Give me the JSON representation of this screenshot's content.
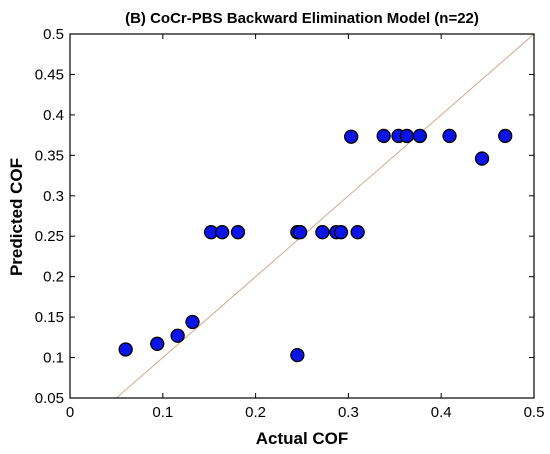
{
  "chart_data": {
    "type": "scatter",
    "title": "(B) CoCr-PBS Backward Elimination Model (n=22)",
    "xlabel": "Actual COF",
    "ylabel": "Predicted COF",
    "xlim": [
      0,
      0.5
    ],
    "ylim": [
      0.05,
      0.5
    ],
    "x_ticks": [
      "0",
      "0.1",
      "0.2",
      "0.3",
      "0.4",
      "0.5"
    ],
    "y_ticks": [
      "0.05",
      "0.1",
      "0.15",
      "0.2",
      "0.25",
      "0.3",
      "0.35",
      "0.4",
      "0.45",
      "0.5"
    ],
    "grid": false,
    "reference_line": {
      "type": "y=x",
      "color": "#d2a98a"
    },
    "marker_color": "#0a14e6",
    "marker_edge_color": "#000000",
    "points": [
      {
        "x": 0.06,
        "y": 0.11
      },
      {
        "x": 0.094,
        "y": 0.117
      },
      {
        "x": 0.116,
        "y": 0.127
      },
      {
        "x": 0.132,
        "y": 0.144
      },
      {
        "x": 0.152,
        "y": 0.255
      },
      {
        "x": 0.164,
        "y": 0.255
      },
      {
        "x": 0.181,
        "y": 0.255
      },
      {
        "x": 0.245,
        "y": 0.103
      },
      {
        "x": 0.245,
        "y": 0.255
      },
      {
        "x": 0.248,
        "y": 0.255
      },
      {
        "x": 0.272,
        "y": 0.255
      },
      {
        "x": 0.287,
        "y": 0.255
      },
      {
        "x": 0.292,
        "y": 0.255
      },
      {
        "x": 0.303,
        "y": 0.373
      },
      {
        "x": 0.31,
        "y": 0.255
      },
      {
        "x": 0.338,
        "y": 0.374
      },
      {
        "x": 0.354,
        "y": 0.374
      },
      {
        "x": 0.363,
        "y": 0.374
      },
      {
        "x": 0.377,
        "y": 0.374
      },
      {
        "x": 0.409,
        "y": 0.374
      },
      {
        "x": 0.444,
        "y": 0.346
      },
      {
        "x": 0.469,
        "y": 0.374
      }
    ]
  }
}
